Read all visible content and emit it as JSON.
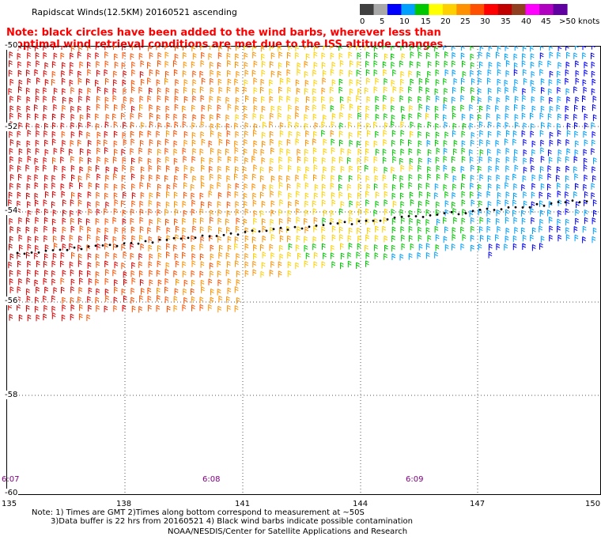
{
  "header": {
    "title": "Rapidscat Winds(12.5KM) 20160521 ascending"
  },
  "legend": {
    "unit": "knots",
    "labels": [
      "0",
      "5",
      "10",
      "15",
      "20",
      "25",
      "30",
      "35",
      "40",
      "45",
      ">50"
    ],
    "colors": [
      "#404040",
      "#a8a8a8",
      "#0000ff",
      "#00a0ff",
      "#00c800",
      "#ffff00",
      "#ffd000",
      "#ff9000",
      "#ff5000",
      "#ff0000",
      "#c00000",
      "#904020",
      "#ff00ff",
      "#b000c0",
      "#6000a0"
    ]
  },
  "notice": {
    "line1": "Note: black circles have been added to the wind barbs, wherever less than",
    "line2": "optimal wind retrieval conditions are met due to the ISS altitude changes."
  },
  "axes": {
    "lat_labels": [
      "-50",
      "-52",
      "-54",
      "-56",
      "-58",
      "-60"
    ],
    "lon_labels": [
      "135",
      "138",
      "141",
      "144",
      "147",
      "150"
    ]
  },
  "times": [
    "6:07",
    "6:08",
    "6:09"
  ],
  "footer": {
    "line1": "Note: 1) Times are GMT 2)Times along bottom correspond to measurement at ~50S",
    "line2": "3)Data buffer is 22 hrs from 20160521 4) Black wind barbs indicate possible contamination",
    "line3": "NOAA/NESDIS/Center for Satellite Applications and Research"
  },
  "map_data": {
    "lat_range": [
      -60,
      -50
    ],
    "lon_range": [
      135,
      150
    ],
    "speed_color_scale": [
      {
        "max": 5,
        "color": "#404040"
      },
      {
        "max": 10,
        "color": "#0000ff"
      },
      {
        "max": 15,
        "color": "#00a0ff"
      },
      {
        "max": 20,
        "color": "#00c800"
      },
      {
        "max": 25,
        "color": "#ffd000"
      },
      {
        "max": 30,
        "color": "#ff9000"
      },
      {
        "max": 35,
        "color": "#ff5000"
      },
      {
        "max": 40,
        "color": "#e00000"
      },
      {
        "max": 99,
        "color": "#c00000"
      }
    ]
  }
}
